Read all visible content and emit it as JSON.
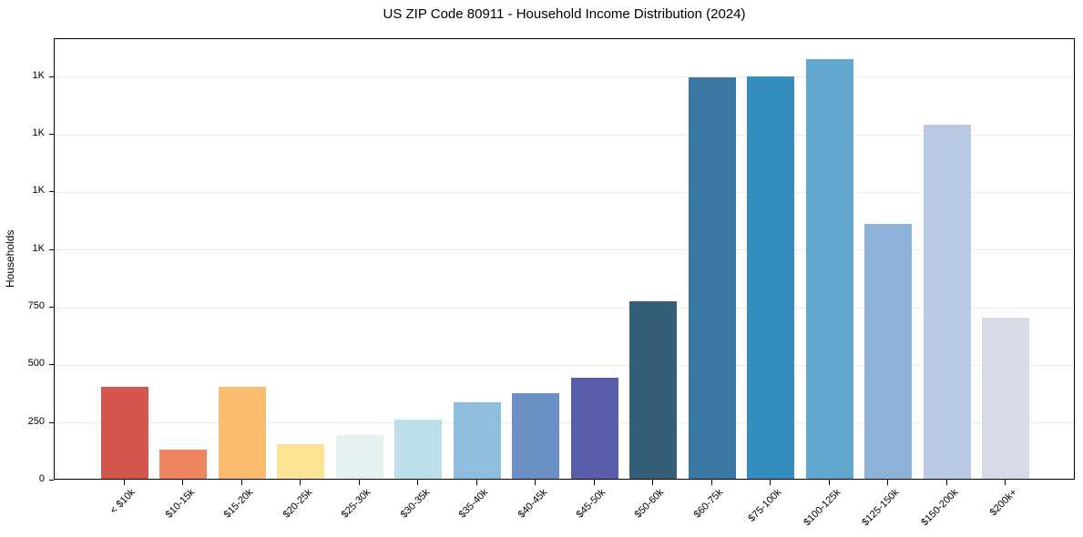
{
  "chart_data": {
    "type": "bar",
    "title": "US ZIP Code 80911 - Household Income Distribution (2024)",
    "xlabel": "",
    "ylabel": "Households",
    "categories": [
      "< $10k",
      "$10-15k",
      "$15-20k",
      "$20-25k",
      "$25-30k",
      "$30-35k",
      "$35-40k",
      "$40-45k",
      "$45-50k",
      "$50-60k",
      "$60-75k",
      "$75-100k",
      "$100-125k",
      "$125-150k",
      "$150-200k",
      "$200k+"
    ],
    "values": [
      400,
      125,
      400,
      150,
      190,
      258,
      330,
      370,
      440,
      770,
      1740,
      1745,
      1820,
      1105,
      1535,
      700
    ],
    "bar_colors": [
      "#d4574e",
      "#f0845f",
      "#fbbc72",
      "#fde495",
      "#e4f1f1",
      "#bce0ea",
      "#8fbddd",
      "#6a90c4",
      "#5a5dac",
      "#355f79",
      "#3878a2",
      "#358dc0",
      "#61a6ce",
      "#8db3d8",
      "#bac9e4",
      "#d9dae8"
    ],
    "ylim": [
      0,
      1915
    ],
    "yticks": [
      {
        "value": 0,
        "label": "0"
      },
      {
        "value": 250,
        "label": "250"
      },
      {
        "value": 500,
        "label": "500"
      },
      {
        "value": 750,
        "label": "750"
      },
      {
        "value": 1000,
        "label": "1K"
      },
      {
        "value": 1250,
        "label": "1K"
      },
      {
        "value": 1500,
        "label": "1K"
      },
      {
        "value": 1750,
        "label": "1K"
      }
    ],
    "grid": "horizontal",
    "grid_color": "#ebebeb",
    "axis_color": "#000000",
    "legend_position": "none"
  }
}
